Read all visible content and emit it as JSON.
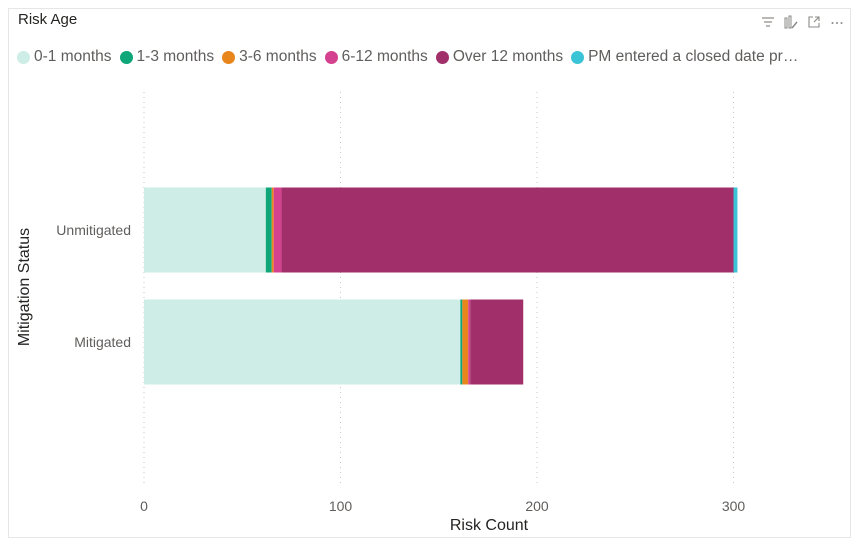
{
  "visual": {
    "title": "Risk Age",
    "icons": [
      "filter-icon",
      "focus-mode-icon",
      "expand-icon",
      "more-options-icon"
    ]
  },
  "chart_data": {
    "type": "bar",
    "orientation": "horizontal",
    "stacked": true,
    "title": "Risk Age",
    "xlabel": "Risk Count",
    "ylabel": "Mitigation Status",
    "categories": [
      "Unmitigated",
      "Mitigated"
    ],
    "xlim": [
      0,
      350
    ],
    "xticks": [
      0,
      100,
      200,
      300
    ],
    "grid": "vertical-dotted",
    "legend_position": "top",
    "series": [
      {
        "name": "0-1 months",
        "color": "#cdede6",
        "values": [
          62,
          161
        ]
      },
      {
        "name": "1-3 months",
        "color": "#0fa67a",
        "values": [
          3,
          1
        ]
      },
      {
        "name": "3-6 months",
        "color": "#e8861c",
        "values": [
          1,
          3
        ]
      },
      {
        "name": "6-12 months",
        "color": "#d4418e",
        "values": [
          4,
          1
        ]
      },
      {
        "name": "Over 12 months",
        "color": "#a02f6a",
        "values": [
          230,
          27
        ]
      },
      {
        "name": "PM entered a closed date pr…",
        "color": "#3bc3d6",
        "values": [
          2,
          0
        ]
      }
    ]
  }
}
